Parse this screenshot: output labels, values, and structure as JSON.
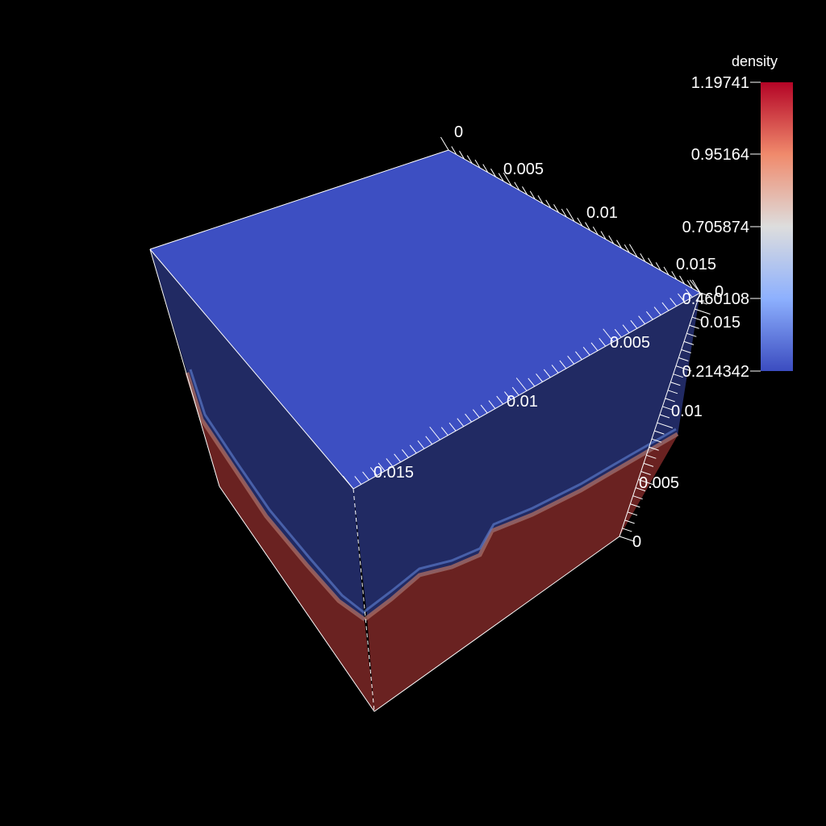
{
  "scene": {
    "background_color": "#000000",
    "variable": "density"
  },
  "axes": {
    "top_axis": {
      "labels": [
        "0",
        "0.005",
        "0.01",
        "0.015"
      ]
    },
    "front_axis": {
      "labels": [
        "0",
        "0.005",
        "0.01",
        "0.015"
      ]
    },
    "right_axis": {
      "labels": [
        "0",
        "0.005",
        "0.01",
        "0.015"
      ]
    }
  },
  "legend": {
    "title": "density",
    "labels": [
      "1.19741",
      "0.95164",
      "0.705874",
      "0.460108",
      "0.214342"
    ],
    "max": 1.19741,
    "min": 0.214342,
    "colormap": "Cool to Warm",
    "colors": [
      "#b40426",
      "#f08a6c",
      "#dddddd",
      "#8db0fe",
      "#3b4cc0"
    ]
  },
  "colors": {
    "top_face": "#3d4fc2",
    "side_upper": "#212a63",
    "side_lower": "#6a2221",
    "interface": "#b07060"
  }
}
